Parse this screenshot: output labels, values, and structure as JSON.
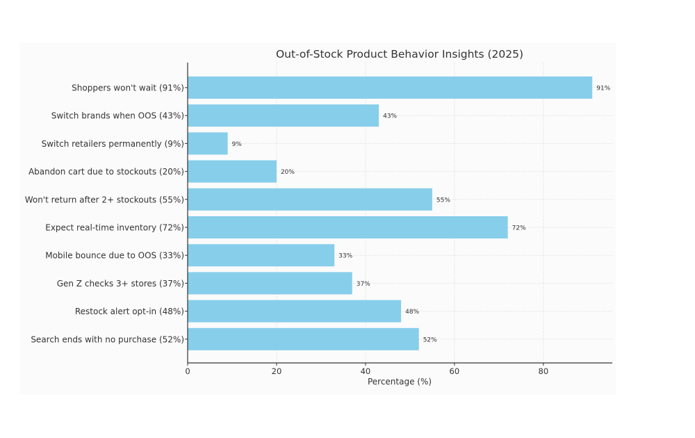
{
  "chart_data": {
    "type": "bar",
    "orientation": "horizontal",
    "title": "Out-of-Stock Product Behavior Insights (2025)",
    "xlabel": "Percentage (%)",
    "ylabel": "",
    "xlim": [
      0,
      95.5
    ],
    "xticks": [
      0,
      20,
      40,
      60,
      80
    ],
    "grid": true,
    "bar_color": "#87ceeb",
    "categories": [
      "Shoppers won't wait (91%)",
      "Switch brands when OOS (43%)",
      "Switch retailers permanently (9%)",
      "Abandon cart due to stockouts (20%)",
      "Won't return after 2+ stockouts (55%)",
      "Expect real-time inventory (72%)",
      "Mobile bounce due to OOS (33%)",
      "Gen Z checks 3+ stores (37%)",
      "Restock alert opt-in (48%)",
      "Search ends with no purchase (52%)"
    ],
    "values": [
      91,
      43,
      9,
      20,
      55,
      72,
      33,
      37,
      48,
      52
    ],
    "data_labels": [
      "91%",
      "43%",
      "9%",
      "20%",
      "55%",
      "72%",
      "33%",
      "37%",
      "48%",
      "52%"
    ]
  }
}
